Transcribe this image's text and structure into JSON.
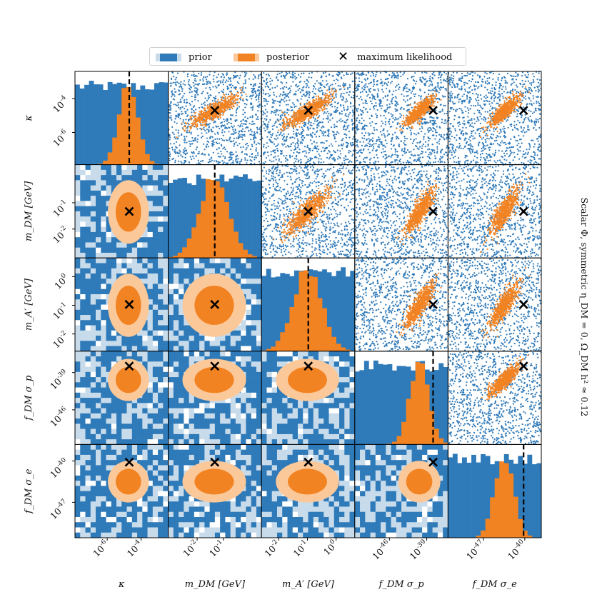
{
  "legend": {
    "prior_label": "prior",
    "posterior_label": "posterior",
    "ml_label": "maximum likelihood"
  },
  "side_title": "Scalar Φ, symmetric η_DM = 0, Ω_DM h² ≈ 0.12",
  "colors": {
    "prior_dark": "#2f7ab9",
    "prior_light": "#c7dbeb",
    "posterior_dark": "#f28322",
    "posterior_light": "#fbc89a",
    "ml_marker": "#000000"
  },
  "chart_data": {
    "type": "corner",
    "variables": [
      {
        "key": "kappa",
        "label": "κ",
        "log10_range": [
          -7.9,
          -2.4
        ],
        "ticks": [
          {
            "v": -6,
            "label": "10^-6"
          },
          {
            "v": -4,
            "label": "10^-4"
          }
        ],
        "ml_log10": -4.7,
        "prior_log10": [
          -7.9,
          -2.4
        ],
        "posterior_log10": {
          "mean": -4.75,
          "sd": 0.55
        }
      },
      {
        "key": "m_DM",
        "label": "m_DM [GeV]",
        "log10_range": [
          -3.1,
          0.45
        ],
        "ticks": [
          {
            "v": -2,
            "label": "10^-2"
          },
          {
            "v": -1,
            "label": "10^-1"
          }
        ],
        "ml_log10": -1.33,
        "prior_log10": [
          -3.1,
          0.45
        ],
        "posterior_log10": {
          "mean": -1.35,
          "sd": 0.55
        }
      },
      {
        "key": "m_A",
        "label": "m_A′ [GeV]",
        "log10_range": [
          -2.6,
          0.65
        ],
        "ticks": [
          {
            "v": -2,
            "label": "10^-2"
          },
          {
            "v": -1,
            "label": "10^-1"
          },
          {
            "v": 0,
            "label": "10^0"
          }
        ],
        "ml_log10": -0.97,
        "prior_log10": [
          -2.6,
          0.65
        ],
        "posterior_log10": {
          "mean": -1.0,
          "sd": 0.5
        }
      },
      {
        "key": "sigma_p",
        "label": "f_DM σ_p",
        "log10_range": [
          -52.5,
          -35
        ],
        "ticks": [
          {
            "v": -46,
            "label": "10^-46"
          },
          {
            "v": -39,
            "label": "10^-39"
          }
        ],
        "ml_log10": -37.8,
        "prior_log10": [
          -52.5,
          -35
        ],
        "posterior_log10": {
          "mean": -40.4,
          "sd": 1.8
        }
      },
      {
        "key": "sigma_e",
        "label": "f_DM σ_e",
        "log10_range": [
          -53,
          -37.2
        ],
        "ticks": [
          {
            "v": -47,
            "label": "10^-47"
          },
          {
            "v": -40,
            "label": "10^-40"
          }
        ],
        "ml_log10": -40.2,
        "prior_log10": [
          -53,
          -37.2
        ],
        "posterior_log10": {
          "mean": -43.5,
          "sd": 1.6
        }
      }
    ],
    "panels": {
      "diagonal": "1D histograms (prior, posterior) with dashed ML line",
      "lower": "2D density contours (prior, posterior) with ML cross",
      "upper": "scatter samples (prior, posterior) with ML cross"
    }
  }
}
